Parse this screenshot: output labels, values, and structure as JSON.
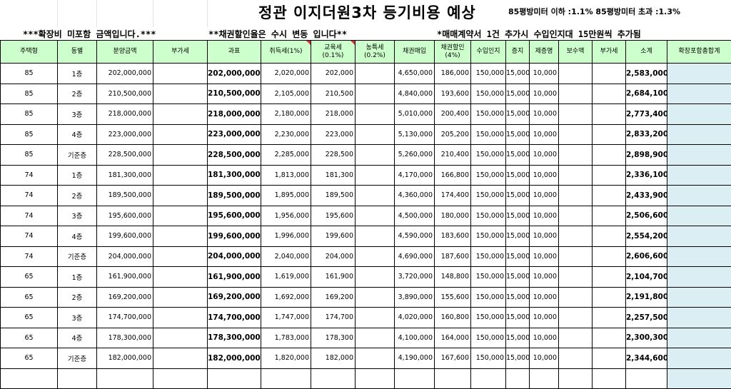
{
  "title": "정관 이지더원3차 등기비용 예상",
  "rate_note": "85평방미터 이하 :1.1%  85평방미터 초과 :1.3%",
  "notes": {
    "left": "***확장비 미포함 금액입니다.***",
    "middle": "**채권할인율은 수시 변동 입니다**",
    "right": "*매매계약서 1건 추가시 수입인지대 15만원씩 추가됨"
  },
  "columns": [
    {
      "label": "주택형"
    },
    {
      "label": "동별"
    },
    {
      "label": "분양금액"
    },
    {
      "label": "부가세"
    },
    {
      "label": "과표"
    },
    {
      "label": "취득세(1%)"
    },
    {
      "label": "교육세",
      "sub": "(0.1%)"
    },
    {
      "label": "농특세",
      "sub": "(0.2%)"
    },
    {
      "label": "채권매입"
    },
    {
      "label": "채권할인",
      "sub": "(4%)"
    },
    {
      "label": "수입인지"
    },
    {
      "label": "증지"
    },
    {
      "label": "제증명"
    },
    {
      "label": "보수액"
    },
    {
      "label": "부가세"
    },
    {
      "label": "소계"
    },
    {
      "label": "확장포함총합계"
    }
  ],
  "rows": [
    [
      "85",
      "1층",
      "202,000,000",
      "",
      "202,000,000",
      "2,020,000",
      "202,000",
      "",
      "4,650,000",
      "186,000",
      "150,000",
      "15,000",
      "10,000",
      "",
      "",
      "2,583,000",
      ""
    ],
    [
      "85",
      "2층",
      "210,500,000",
      "",
      "210,500,000",
      "2,105,000",
      "210,500",
      "",
      "4,840,000",
      "193,600",
      "150,000",
      "15,000",
      "10,000",
      "",
      "",
      "2,684,100",
      ""
    ],
    [
      "85",
      "3층",
      "218,000,000",
      "",
      "218,000,000",
      "2,180,000",
      "218,000",
      "",
      "5,010,000",
      "200,400",
      "150,000",
      "15,000",
      "10,000",
      "",
      "",
      "2,773,400",
      ""
    ],
    [
      "85",
      "4층",
      "223,000,000",
      "",
      "223,000,000",
      "2,230,000",
      "223,000",
      "",
      "5,130,000",
      "205,200",
      "150,000",
      "15,000",
      "10,000",
      "",
      "",
      "2,833,200",
      ""
    ],
    [
      "85",
      "기준층",
      "228,500,000",
      "",
      "228,500,000",
      "2,285,000",
      "228,500",
      "",
      "5,260,000",
      "210,400",
      "150,000",
      "15,000",
      "10,000",
      "",
      "",
      "2,898,900",
      ""
    ],
    [
      "74",
      "1층",
      "181,300,000",
      "",
      "181,300,000",
      "1,813,000",
      "181,300",
      "",
      "4,170,000",
      "166,800",
      "150,000",
      "15,000",
      "10,000",
      "",
      "",
      "2,336,100",
      ""
    ],
    [
      "74",
      "2층",
      "189,500,000",
      "",
      "189,500,000",
      "1,895,000",
      "189,500",
      "",
      "4,360,000",
      "174,400",
      "150,000",
      "15,000",
      "10,000",
      "",
      "",
      "2,433,900",
      ""
    ],
    [
      "74",
      "3층",
      "195,600,000",
      "",
      "195,600,000",
      "1,956,000",
      "195,600",
      "",
      "4,500,000",
      "180,000",
      "150,000",
      "15,000",
      "10,000",
      "",
      "",
      "2,506,600",
      ""
    ],
    [
      "74",
      "4층",
      "199,600,000",
      "",
      "199,600,000",
      "1,996,000",
      "199,600",
      "",
      "4,590,000",
      "183,600",
      "150,000",
      "15,000",
      "10,000",
      "",
      "",
      "2,554,200",
      ""
    ],
    [
      "74",
      "기준층",
      "204,000,000",
      "",
      "204,000,000",
      "2,040,000",
      "204,000",
      "",
      "4,690,000",
      "187,600",
      "150,000",
      "15,000",
      "10,000",
      "",
      "",
      "2,606,600",
      ""
    ],
    [
      "65",
      "1층",
      "161,900,000",
      "",
      "161,900,000",
      "1,619,000",
      "161,900",
      "",
      "3,720,000",
      "148,800",
      "150,000",
      "15,000",
      "10,000",
      "",
      "",
      "2,104,700",
      ""
    ],
    [
      "65",
      "2층",
      "169,200,000",
      "",
      "169,200,000",
      "1,692,000",
      "169,200",
      "",
      "3,890,000",
      "155,600",
      "150,000",
      "15,000",
      "10,000",
      "",
      "",
      "2,191,800",
      ""
    ],
    [
      "65",
      "3층",
      "174,700,000",
      "",
      "174,700,000",
      "1,747,000",
      "174,700",
      "",
      "4,020,000",
      "160,800",
      "150,000",
      "15,000",
      "10,000",
      "",
      "",
      "2,257,500",
      ""
    ],
    [
      "65",
      "4층",
      "178,300,000",
      "",
      "178,300,000",
      "1,783,000",
      "178,300",
      "",
      "4,100,000",
      "164,000",
      "150,000",
      "15,000",
      "10,000",
      "",
      "",
      "2,300,300",
      ""
    ],
    [
      "65",
      "기준층",
      "182,000,000",
      "",
      "182,000,000",
      "1,820,000",
      "182,000",
      "",
      "4,190,000",
      "167,600",
      "150,000",
      "15,000",
      "10,000",
      "",
      "",
      "2,344,600",
      ""
    ],
    [
      "",
      "",
      "",
      "",
      "",
      "",
      "",
      "",
      "",
      "",
      "",
      "",
      "",
      "",
      "",
      "",
      ""
    ]
  ],
  "colors": {
    "header_bg": "#ccffcc",
    "total_col_bg": "#daeef3",
    "comment_marker": "#e03030"
  }
}
